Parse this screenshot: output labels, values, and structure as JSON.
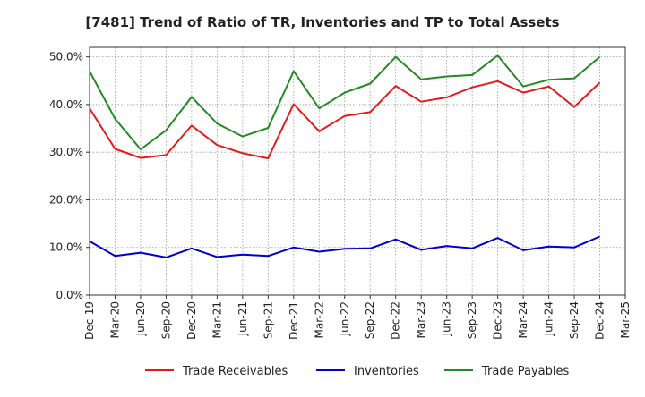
{
  "chart_data": {
    "type": "line",
    "title": "[7481]  Trend of Ratio of TR, Inventories and TP to Total Assets",
    "xlabel": "",
    "ylabel": "",
    "x": [
      "Dec-19",
      "Mar-20",
      "Jun-20",
      "Sep-20",
      "Dec-20",
      "Mar-21",
      "Jun-21",
      "Sep-21",
      "Dec-21",
      "Mar-22",
      "Jun-22",
      "Sep-22",
      "Dec-22",
      "Mar-23",
      "Jun-23",
      "Sep-23",
      "Dec-23",
      "Mar-24",
      "Jun-24",
      "Sep-24",
      "Dec-24"
    ],
    "x_ticks": [
      "Dec-19",
      "Mar-20",
      "Jun-20",
      "Sep-20",
      "Dec-20",
      "Mar-21",
      "Jun-21",
      "Sep-21",
      "Dec-21",
      "Mar-22",
      "Jun-22",
      "Sep-22",
      "Dec-22",
      "Mar-23",
      "Jun-23",
      "Sep-23",
      "Dec-23",
      "Mar-24",
      "Jun-24",
      "Sep-24",
      "Dec-24",
      "Mar-25"
    ],
    "y_ticks": [
      "0.0%",
      "10.0%",
      "20.0%",
      "30.0%",
      "40.0%",
      "50.0%"
    ],
    "y_tick_values": [
      0,
      10,
      20,
      30,
      40,
      50
    ],
    "ylim": [
      0,
      52
    ],
    "grid": true,
    "legend_position": "bottom",
    "series": [
      {
        "name": "Trade Receivables",
        "color": "#e41a1c",
        "values": [
          39.2,
          30.7,
          28.8,
          29.4,
          35.6,
          31.5,
          29.8,
          28.7,
          40.1,
          34.4,
          37.6,
          38.4,
          43.9,
          40.6,
          41.5,
          43.6,
          44.9,
          42.5,
          43.8,
          39.5,
          44.6
        ]
      },
      {
        "name": "Inventories",
        "color": "#0000cc",
        "values": [
          11.3,
          8.2,
          8.9,
          7.9,
          9.8,
          8.0,
          8.5,
          8.2,
          10.0,
          9.1,
          9.7,
          9.8,
          11.7,
          9.5,
          10.3,
          9.8,
          12.0,
          9.4,
          10.2,
          10.0,
          12.3
        ]
      },
      {
        "name": "Trade Payables",
        "color": "#228b22",
        "values": [
          47.0,
          37.0,
          30.6,
          34.6,
          41.6,
          36.0,
          33.3,
          35.1,
          47.0,
          39.2,
          42.5,
          44.4,
          50.0,
          45.3,
          45.9,
          46.2,
          50.3,
          43.8,
          45.2,
          45.5,
          50.0
        ]
      }
    ]
  }
}
